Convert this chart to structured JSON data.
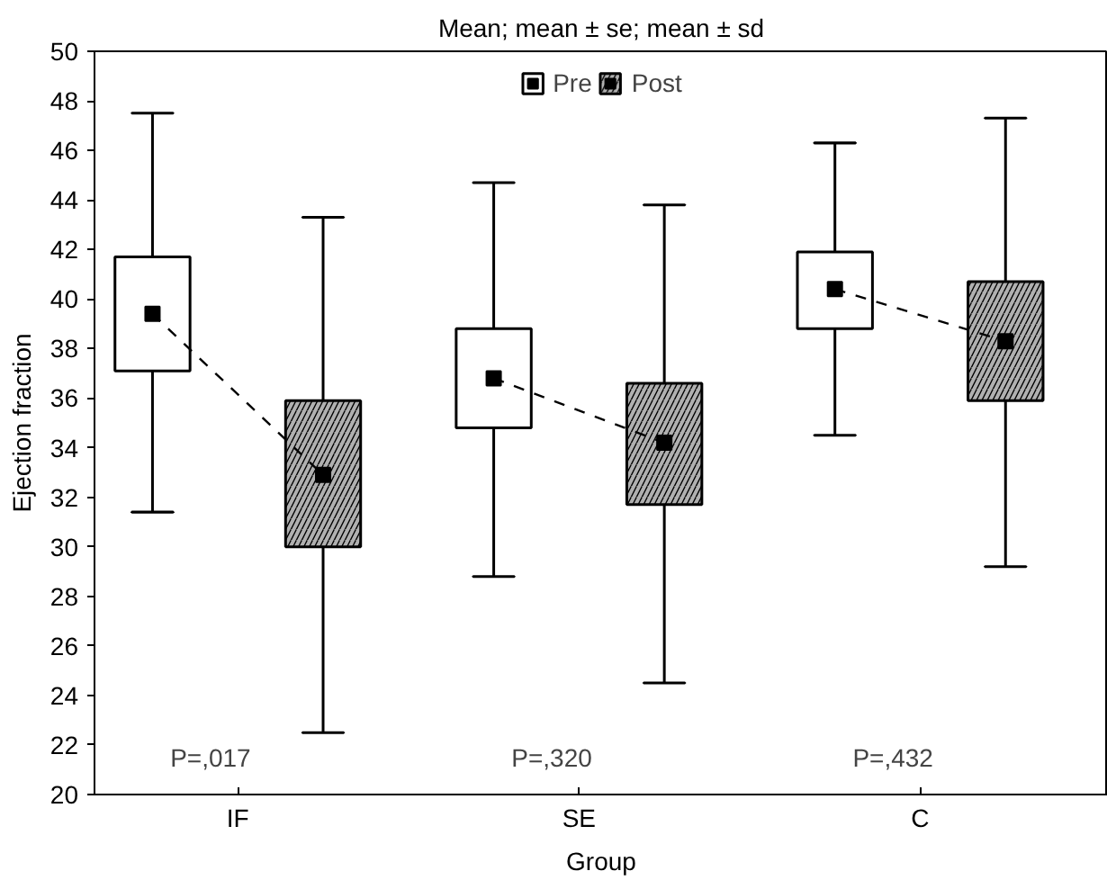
{
  "chart_data": {
    "type": "box",
    "title": "Mean; mean ± se; mean ± sd",
    "xlabel": "Group",
    "ylabel": "Ejection fraction",
    "categories": [
      null,
      "IF",
      null,
      null,
      null,
      "SE",
      null,
      null,
      null,
      "C",
      null
    ],
    "series": [
      {
        "name": "Pre",
        "color": "#ffffff",
        "boxes": [
          {
            "low": 31.4,
            "q1": 37.1,
            "median": 39.4,
            "q3": 41.7,
            "high": 47.5
          },
          null,
          null,
          null,
          {
            "low": 28.8,
            "q1": 34.8,
            "median": 36.8,
            "q3": 38.8,
            "high": 44.7
          },
          null,
          null,
          null,
          {
            "low": 34.5,
            "q1": 38.8,
            "median": 40.4,
            "q3": 41.9,
            "high": 46.3
          },
          null,
          null
        ]
      },
      {
        "name": "Post",
        "color": "#b0b0b0",
        "boxes": [
          null,
          null,
          {
            "low": 22.5,
            "q1": 30.0,
            "median": 32.9,
            "q3": 35.9,
            "high": 43.3
          },
          null,
          null,
          null,
          {
            "low": 24.5,
            "q1": 31.7,
            "median": 34.2,
            "q3": 36.6,
            "high": 43.8
          },
          null,
          null,
          null,
          {
            "low": 29.2,
            "q1": 35.9,
            "median": 38.3,
            "q3": 40.7,
            "high": 47.3
          }
        ]
      },
      {
        "type": "line",
        "color": "#000000",
        "line_style": "dashed",
        "marker": "none",
        "values": [
          39.4,
          null,
          32.9,
          null,
          null,
          null,
          null,
          null,
          null,
          null,
          null
        ]
      },
      {
        "type": "line",
        "color": "#000000",
        "line_style": "dashed",
        "marker": "none",
        "values": [
          null,
          null,
          null,
          null,
          36.8,
          null,
          34.2,
          null,
          null,
          null,
          null
        ]
      },
      {
        "type": "line",
        "color": "#000000",
        "line_style": "dashed",
        "marker": "none",
        "values": [
          null,
          null,
          null,
          null,
          null,
          null,
          null,
          null,
          40.4,
          null,
          38.3
        ]
      }
    ],
    "annotations": [
      "P=,017",
      "P=,320",
      "P=,432"
    ],
    "ylim": [
      20,
      50
    ],
    "yticks": [
      20,
      22,
      24,
      26,
      28,
      30,
      32,
      34,
      36,
      38,
      40,
      42,
      44,
      46,
      48,
      50
    ],
    "marker": "square",
    "legend": "top",
    "grid": false
  }
}
